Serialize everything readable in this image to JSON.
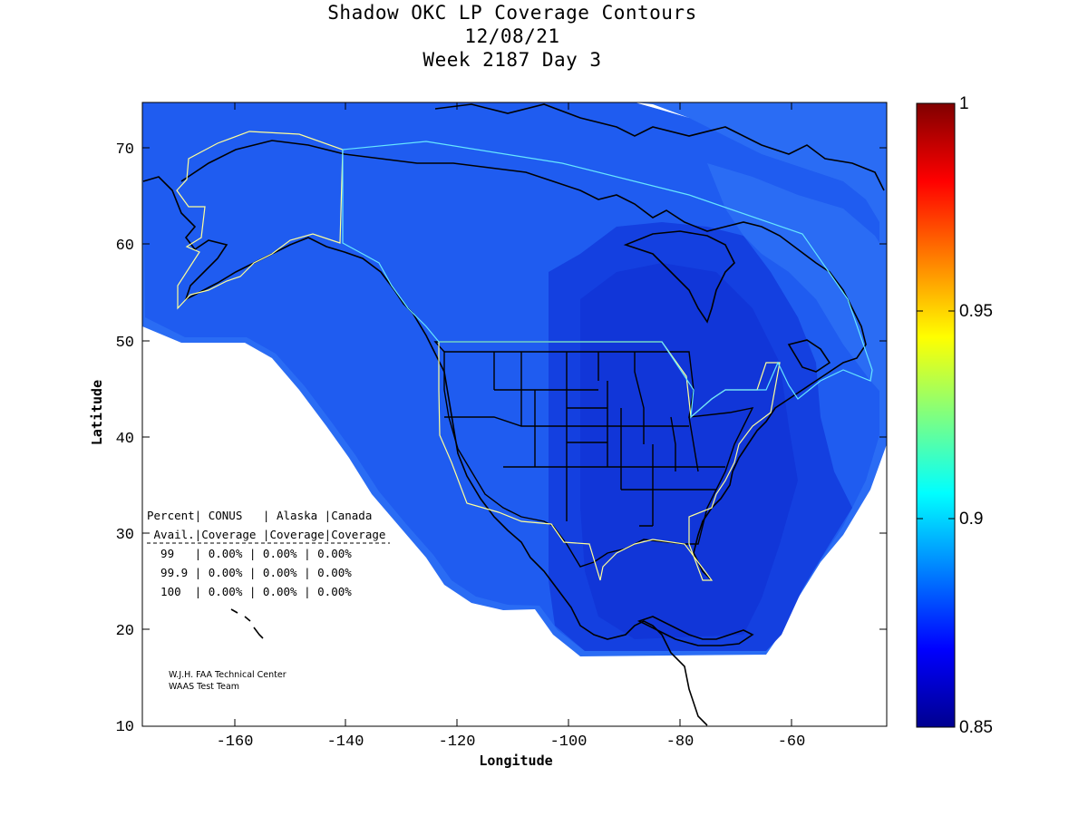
{
  "title": {
    "line1": "Shadow OKC LP Coverage Contours",
    "line2": "12/08/21",
    "line3": "Week 2187 Day 3"
  },
  "axes": {
    "xlabel": "Longitude",
    "ylabel": "Latitude",
    "xticks": [
      "-160",
      "-140",
      "-120",
      "-100",
      "-80",
      "-60"
    ],
    "yticks": [
      "70",
      "60",
      "50",
      "40",
      "30",
      "20",
      "10"
    ]
  },
  "colorbar": {
    "ticks": [
      "1",
      "0.95",
      "0.9",
      "0.85"
    ],
    "min": 0.85,
    "max": 1
  },
  "stats_table": {
    "header1": "Percent| CONUS   | Alaska |Canada",
    "header2": " Avail.|Coverage |Coverage|Coverage",
    "rows": [
      "  99   | 0.00% | 0.00% | 0.00%",
      "  99.9 | 0.00% | 0.00% | 0.00%",
      "  100  | 0.00% | 0.00% | 0.00%"
    ]
  },
  "credit": {
    "line1": "W.J.H. FAA Technical Center",
    "line2": "WAAS Test Team"
  },
  "colors": {
    "coverage_main": "#1f5cf0",
    "coverage_inner": "#1440e0",
    "coverage_edge": "#2a6cf4",
    "boundary": "#ffff99",
    "boundary_canada": "#66e6ff"
  }
}
